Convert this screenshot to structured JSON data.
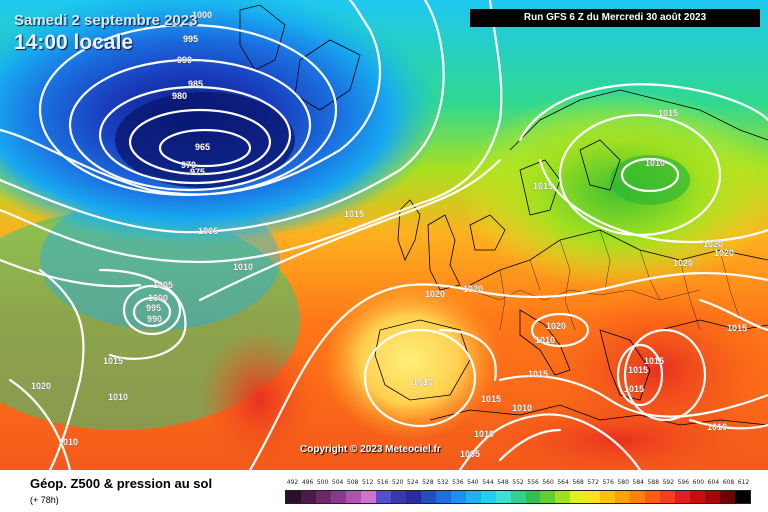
{
  "header": {
    "date": "Samedi 2 septembre 2023",
    "time": "14:00 locale",
    "run": "Run GFS 6 Z du Mercredi 30 août 2023"
  },
  "copyright": "Copyright © 2023 Meteociel.fr",
  "pressure_labels": [
    "1000",
    "995",
    "990",
    "985",
    "980",
    "970",
    "965",
    "975",
    "1005",
    "1010",
    "1015",
    "1020",
    "1005",
    "1000",
    "995",
    "990",
    "1015",
    "1020",
    "1010",
    "1010",
    "1015",
    "1010",
    "1020",
    "1020",
    "1015",
    "1020",
    "1020",
    "1020",
    "1015",
    "1010",
    "1015",
    "1010",
    "1010",
    "1005",
    "1015",
    "1015",
    "1015",
    "1010",
    "1015",
    "1010"
  ],
  "footer": {
    "title": "Géop. Z500 & pression au sol",
    "subtitle": "(+ 78h)"
  },
  "legend": {
    "labels": [
      "492",
      "496",
      "500",
      "504",
      "508",
      "512",
      "516",
      "520",
      "524",
      "528",
      "532",
      "536",
      "540",
      "544",
      "548",
      "552",
      "556",
      "560",
      "564",
      "568",
      "572",
      "576",
      "580",
      "584",
      "588",
      "592",
      "596",
      "600",
      "604",
      "608",
      "612"
    ],
    "colors": [
      "#2a0f2a",
      "#4a1a4a",
      "#6a2a6a",
      "#8a3a8a",
      "#b050b0",
      "#d070d0",
      "#5050d0",
      "#3a3ab0",
      "#2a2aa0",
      "#2050c0",
      "#1a70e0",
      "#1a90f0",
      "#20b0f0",
      "#20d0f0",
      "#40e0d0",
      "#30d090",
      "#30c050",
      "#60d030",
      "#a0e020",
      "#e0f020",
      "#ffe020",
      "#ffc010",
      "#ffa010",
      "#ff8010",
      "#f86010",
      "#f04020",
      "#e02020",
      "#c01010",
      "#a00808",
      "#700000",
      "#000000"
    ]
  }
}
